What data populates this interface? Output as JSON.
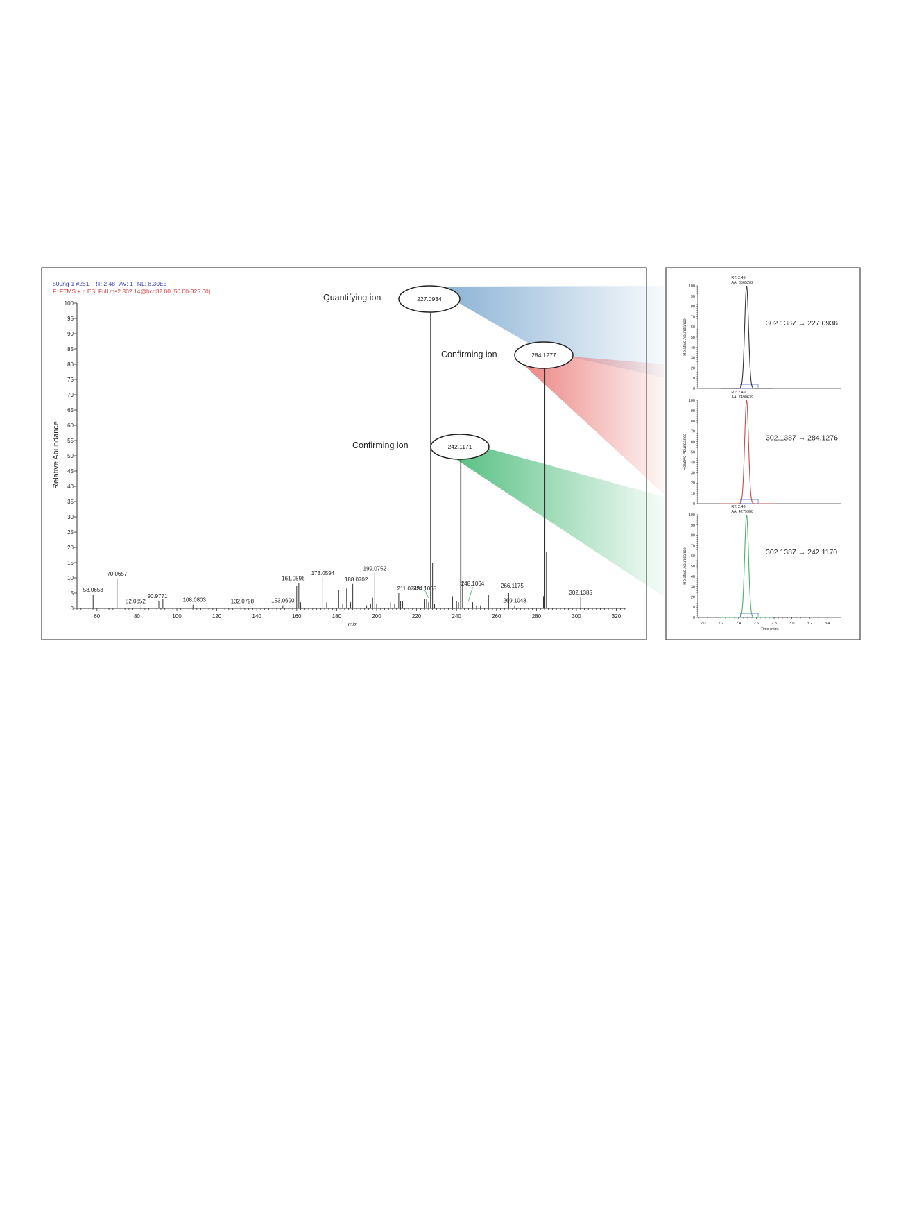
{
  "header": {
    "line1_scan": "500ng-1 #251",
    "line1_rt": "RT: 2.48",
    "line1_av": "AV: 1",
    "line1_nl": "NL: 8.30E5",
    "line2": "F: FTMS + p ESI Full ms2 302.14@hcd32.00 [50.00-325.00]"
  },
  "callouts": [
    {
      "label": "Quantifying ion",
      "mz": "227.0934"
    },
    {
      "label": "Confirming ion",
      "mz": "284.1277"
    },
    {
      "label": "Confirming ion",
      "mz": "242.1171"
    }
  ],
  "colors": {
    "blue": "#5b93c4",
    "red": "#e8706d",
    "green": "#35b36a",
    "black_trace": "#333333",
    "red_trace": "#c0504d",
    "green_trace": "#4caf6a",
    "baseline_blue": "#4a6fd6",
    "header_blue": "#3b3ba8",
    "header_red": "#d04040"
  },
  "chart_data": [
    {
      "type": "bar",
      "xlabel": "m/z",
      "ylabel": "Relative Abundance",
      "xlim": [
        50,
        325
      ],
      "ylim": [
        0,
        100
      ],
      "x_ticks": [
        60,
        80,
        100,
        120,
        140,
        160,
        180,
        200,
        220,
        240,
        260,
        280,
        300,
        320
      ],
      "y_ticks": [
        0,
        5,
        10,
        15,
        20,
        25,
        30,
        35,
        40,
        45,
        50,
        55,
        60,
        65,
        70,
        75,
        80,
        85,
        90,
        95,
        100
      ],
      "labeled_peaks": [
        {
          "mz": 58.0653,
          "intensity": 4.5,
          "label": "58.0653"
        },
        {
          "mz": 70.0657,
          "intensity": 9.8,
          "label": "70.0657"
        },
        {
          "mz": 82.0652,
          "intensity": 0.8,
          "label": "82.0652"
        },
        {
          "mz": 90.9771,
          "intensity": 2.5,
          "label": "90.9771"
        },
        {
          "mz": 108.0803,
          "intensity": 1.2,
          "label": "108.0803"
        },
        {
          "mz": 132.0798,
          "intensity": 0.8,
          "label": "132.0798"
        },
        {
          "mz": 153.069,
          "intensity": 1.0,
          "label": "153.0690"
        },
        {
          "mz": 161.0596,
          "intensity": 8.3,
          "label": "161.0596"
        },
        {
          "mz": 173.0594,
          "intensity": 10.0,
          "label": "173.0594"
        },
        {
          "mz": 188.0702,
          "intensity": 8.0,
          "label": "188.0702"
        },
        {
          "mz": 199.0752,
          "intensity": 11.5,
          "label": "199.0752"
        },
        {
          "mz": 211.0749,
          "intensity": 5.0,
          "label": "211.0749"
        },
        {
          "mz": 224.1065,
          "intensity": 3.0,
          "label": "224.1065"
        },
        {
          "mz": 227.0934,
          "intensity": 100.0,
          "label": "227.0934"
        },
        {
          "mz": 242.1171,
          "intensity": 51.0,
          "label": "242.1171"
        },
        {
          "mz": 248.1064,
          "intensity": 2.0,
          "label": "248.1064"
        },
        {
          "mz": 266.1175,
          "intensity": 5.0,
          "label": "266.1175"
        },
        {
          "mz": 269.1048,
          "intensity": 1.0,
          "label": "269.1048"
        },
        {
          "mz": 284.1277,
          "intensity": 81.5,
          "label": "284.1277"
        },
        {
          "mz": 302.1385,
          "intensity": 3.6,
          "label": "302.1385"
        }
      ],
      "unlabeled_peaks": [
        {
          "mz": 93.0,
          "intensity": 3.0
        },
        {
          "mz": 160.0,
          "intensity": 7.5
        },
        {
          "mz": 162.0,
          "intensity": 2.0
        },
        {
          "mz": 175.0,
          "intensity": 2.0
        },
        {
          "mz": 181.0,
          "intensity": 6.0
        },
        {
          "mz": 183.0,
          "intensity": 1.5
        },
        {
          "mz": 185.0,
          "intensity": 6.5
        },
        {
          "mz": 187.0,
          "intensity": 2.0
        },
        {
          "mz": 195.0,
          "intensity": 1.0
        },
        {
          "mz": 197.0,
          "intensity": 1.5
        },
        {
          "mz": 198.0,
          "intensity": 3.5
        },
        {
          "mz": 200.0,
          "intensity": 1.5
        },
        {
          "mz": 207.0,
          "intensity": 2.0
        },
        {
          "mz": 209.0,
          "intensity": 1.5
        },
        {
          "mz": 212.0,
          "intensity": 2.5
        },
        {
          "mz": 213.0,
          "intensity": 2.5
        },
        {
          "mz": 225.0,
          "intensity": 3.0
        },
        {
          "mz": 226.0,
          "intensity": 2.0
        },
        {
          "mz": 228.0,
          "intensity": 15.0
        },
        {
          "mz": 229.0,
          "intensity": 1.5
        },
        {
          "mz": 238.0,
          "intensity": 4.0
        },
        {
          "mz": 240.0,
          "intensity": 2.5
        },
        {
          "mz": 241.0,
          "intensity": 2.0
        },
        {
          "mz": 243.0,
          "intensity": 9.0
        },
        {
          "mz": 250.0,
          "intensity": 1.0
        },
        {
          "mz": 252.0,
          "intensity": 1.0
        },
        {
          "mz": 256.0,
          "intensity": 4.5
        },
        {
          "mz": 283.5,
          "intensity": 4.0
        },
        {
          "mz": 285.0,
          "intensity": 18.5
        }
      ]
    },
    {
      "type": "line",
      "rt": "RT: 2.49",
      "aa": "AA: 8565262",
      "transition": "302.1387 → 227.0936",
      "color": "#333333",
      "peak_time": 2.49,
      "ylabel": "Relative Abundance",
      "ylim": [
        0,
        100
      ],
      "xlim": [
        1.94,
        3.55
      ],
      "y_ticks": [
        0,
        10,
        20,
        30,
        40,
        50,
        60,
        70,
        80,
        90,
        100
      ]
    },
    {
      "type": "line",
      "rt": "RT: 2.49",
      "aa": "AA: 7490639",
      "transition": "302.1387 → 284.1276",
      "color": "#c0504d",
      "peak_time": 2.49,
      "ylabel": "Relative Abundance",
      "ylim": [
        0,
        100
      ],
      "xlim": [
        1.94,
        3.55
      ],
      "y_ticks": [
        0,
        10,
        20,
        30,
        40,
        50,
        60,
        70,
        80,
        90,
        100
      ]
    },
    {
      "type": "line",
      "rt": "RT: 2.49",
      "aa": "AA: 4279908",
      "transition": "302.1387 → 242.1170",
      "color": "#4caf6a",
      "peak_time": 2.49,
      "ylabel": "Relative Abundance",
      "xlabel": "Time (min)",
      "ylim": [
        0,
        100
      ],
      "xlim": [
        1.94,
        3.55
      ],
      "y_ticks": [
        0,
        10,
        20,
        30,
        40,
        50,
        60,
        70,
        80,
        90,
        100
      ],
      "x_ticks": [
        2.0,
        2.2,
        2.4,
        2.6,
        2.8,
        3.0,
        3.2,
        3.4
      ]
    }
  ]
}
